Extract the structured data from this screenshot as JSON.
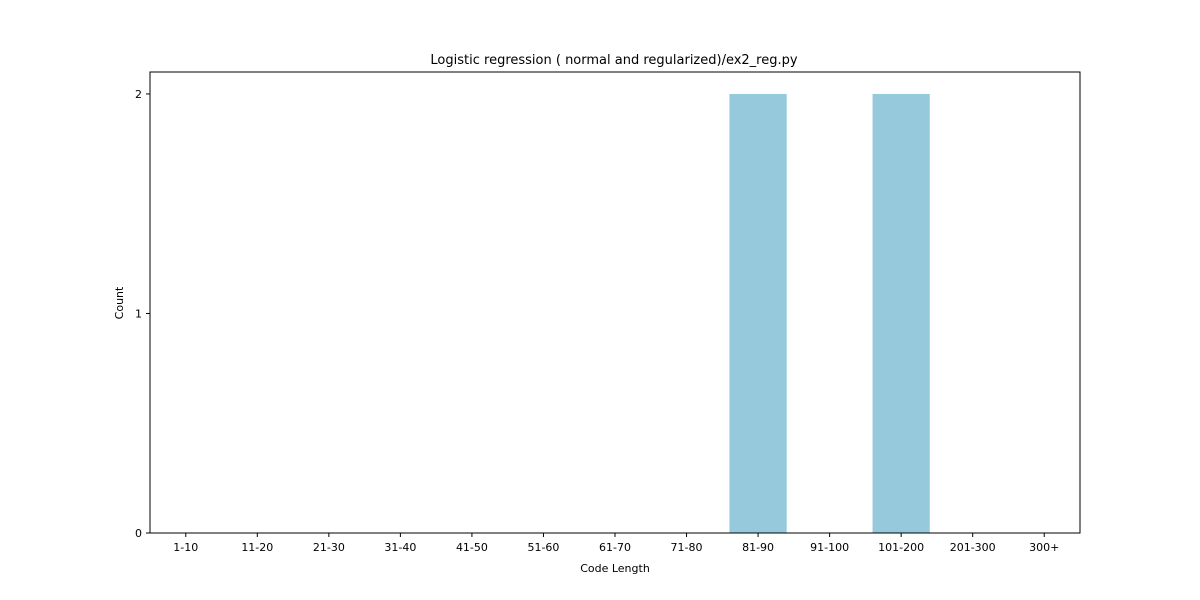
{
  "chart_data": {
    "type": "bar",
    "title": "Logistic regression ( normal and regularized)/ex2_reg.py",
    "xlabel": "Code Length",
    "ylabel": "Count",
    "categories": [
      "1-10",
      "11-20",
      "21-30",
      "31-40",
      "41-50",
      "51-60",
      "61-70",
      "71-80",
      "81-90",
      "91-100",
      "101-200",
      "201-300",
      "300+"
    ],
    "values": [
      0,
      0,
      0,
      0,
      0,
      0,
      0,
      0,
      2,
      0,
      2,
      0,
      0
    ],
    "ylim": [
      0,
      2.1
    ],
    "yticks": [
      0,
      1,
      2
    ],
    "grid": false,
    "bar_color": "#96c9dc"
  }
}
